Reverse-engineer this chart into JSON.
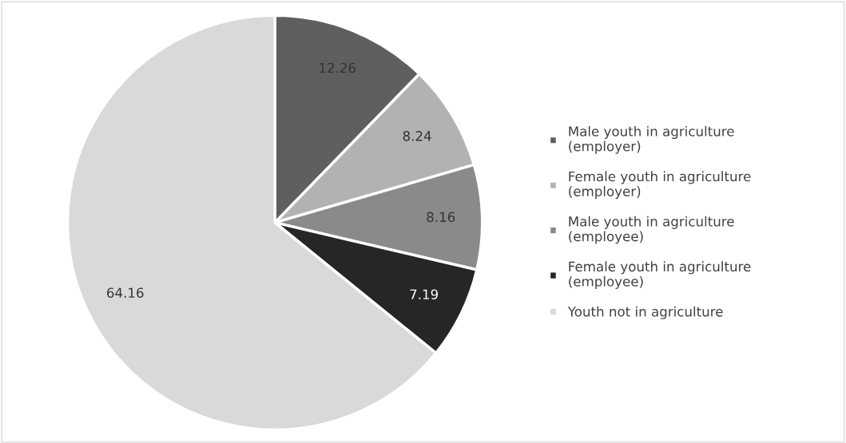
{
  "chart_data": {
    "type": "pie",
    "categories": [
      "Male youth in agriculture (employer)",
      "Female youth in agriculture (employer)",
      "Male youth in agriculture (employee)",
      "Female youth in agriculture (employee)",
      "Youth not in agriculture"
    ],
    "values": [
      12.26,
      8.24,
      8.16,
      7.19,
      64.16
    ],
    "colors": [
      "#5f5f5f",
      "#b2b2b2",
      "#8a8a8a",
      "#262626",
      "#d9d9d9"
    ],
    "data_labels": true,
    "legend": "right"
  }
}
